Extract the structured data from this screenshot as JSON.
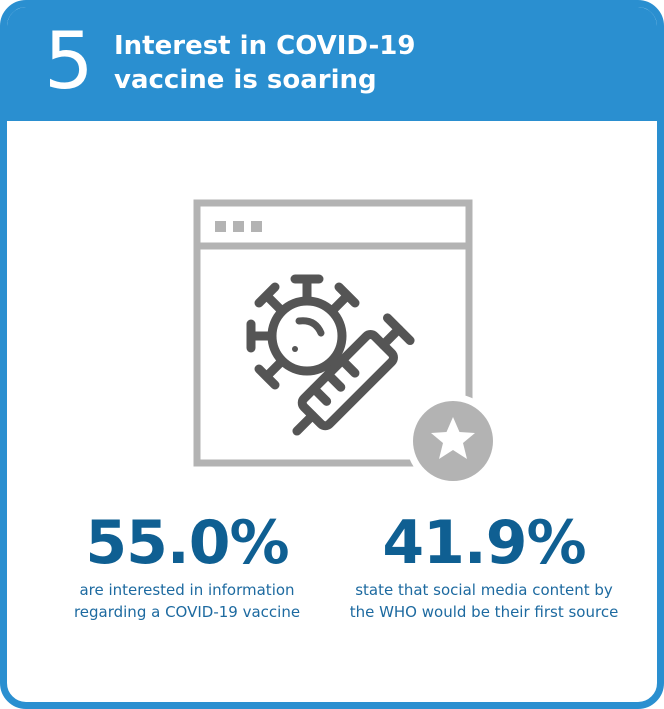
{
  "header": {
    "number": "5",
    "title_line1": "Interest in COVID-19",
    "title_line2": "vaccine is soaring"
  },
  "illustration": {
    "icon": "browser-window-virus-syringe-icon",
    "badge_icon": "star-icon"
  },
  "stats": [
    {
      "value": "55.0%",
      "line1": "are interested in information",
      "line2": "regarding a COVID-19 vaccine"
    },
    {
      "value": "41.9%",
      "line1": "state that social media content by",
      "line2": "the WHO would be their first source"
    }
  ],
  "colors": {
    "brand_blue": "#2a8fd0",
    "stat_blue": "#0f5f92",
    "icon_gray": "#b3b3b3",
    "icon_dark": "#555555"
  }
}
